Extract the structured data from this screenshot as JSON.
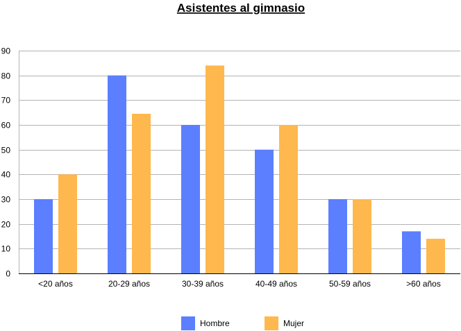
{
  "chart_data": {
    "type": "bar",
    "title": "Asistentes al gimnasio",
    "xlabel": "",
    "ylabel": "",
    "ylim": [
      0,
      90
    ],
    "yticks": [
      0,
      10,
      20,
      30,
      40,
      50,
      60,
      70,
      80,
      90
    ],
    "grid": true,
    "legend_position": "bottom",
    "categories": [
      "<20 años",
      "20-29 años",
      "30-39 años",
      "40-49 años",
      "50-59 años",
      ">60 años"
    ],
    "series": [
      {
        "name": "Hombre",
        "color": "#5b7fff",
        "values": [
          30,
          80,
          60,
          50,
          30,
          17
        ]
      },
      {
        "name": "Mujer",
        "color": "#ffb84d",
        "values": [
          40,
          64.5,
          84,
          60,
          30,
          14
        ]
      }
    ]
  }
}
